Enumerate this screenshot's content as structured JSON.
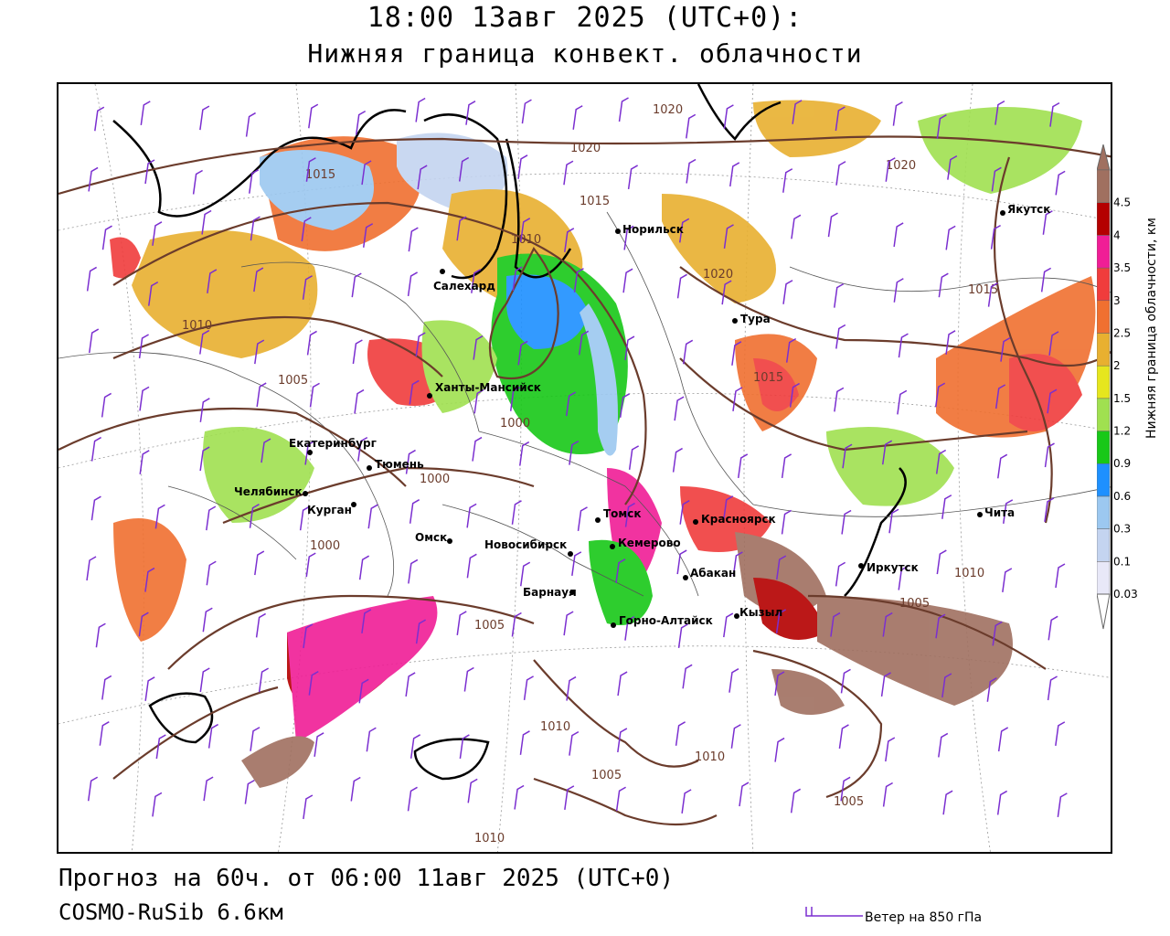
{
  "header": {
    "title_line1": "18:00 13авг 2025 (UTC+0):",
    "title_line2": "Нижняя граница конвект. облачности"
  },
  "footer": {
    "forecast": "Прогноз на 60ч. от 06:00 11авг 2025 (UTC+0)",
    "model": "COSMO-RuSib 6.6км",
    "wind_legend": "Ветер на 850 гПа"
  },
  "legend": {
    "caption": "Нижняя граница облачности, км",
    "levels": [
      {
        "label": "0.03",
        "color": "#e8e8f8"
      },
      {
        "label": "0.1",
        "color": "#c4d4f0"
      },
      {
        "label": "0.3",
        "color": "#9cc8f0"
      },
      {
        "label": "0.6",
        "color": "#1e90ff"
      },
      {
        "label": "0.9",
        "color": "#18c818"
      },
      {
        "label": "1.2",
        "color": "#a0e050"
      },
      {
        "label": "1.5",
        "color": "#e6e61e"
      },
      {
        "label": "2",
        "color": "#e8b030"
      },
      {
        "label": "2.5",
        "color": "#f07030"
      },
      {
        "label": "3",
        "color": "#f03c3c"
      },
      {
        "label": "3.5",
        "color": "#f01e96"
      },
      {
        "label": "4",
        "color": "#b40000"
      },
      {
        "label": "4.5",
        "color": "#a07060"
      }
    ]
  },
  "colors": {
    "isobar": "#6b3c2c",
    "wind_barb": "#7b2fd0",
    "border": "#000000"
  },
  "cities": [
    {
      "name": "Салехард"
    },
    {
      "name": "Норильск"
    },
    {
      "name": "Тура"
    },
    {
      "name": "Якутск"
    },
    {
      "name": "Ханты-Мансийск"
    },
    {
      "name": "Екатеринбург"
    },
    {
      "name": "Тюмень"
    },
    {
      "name": "Челябинск"
    },
    {
      "name": "Курган"
    },
    {
      "name": "Омск"
    },
    {
      "name": "Новосибирск"
    },
    {
      "name": "Томск"
    },
    {
      "name": "Кемерово"
    },
    {
      "name": "Барнаул"
    },
    {
      "name": "Горно-Алтайск"
    },
    {
      "name": "Абакан"
    },
    {
      "name": "Кызыл"
    },
    {
      "name": "Красноярск"
    },
    {
      "name": "Иркутск"
    },
    {
      "name": "Чита"
    }
  ],
  "isobars": [
    "1020",
    "1020",
    "1020",
    "1015",
    "1010",
    "1020",
    "1015",
    "1015",
    "1015",
    "1010",
    "1005",
    "1000",
    "1000",
    "1000",
    "1005",
    "1010",
    "1010",
    "1005",
    "1010",
    "1005",
    "1005",
    "1010"
  ]
}
